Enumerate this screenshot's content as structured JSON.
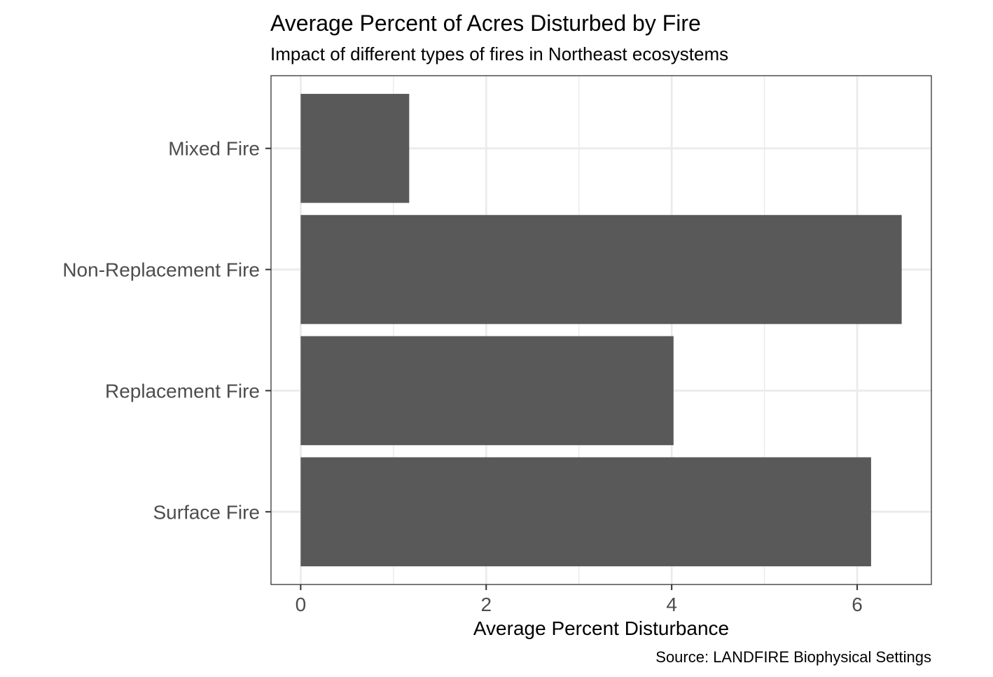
{
  "chart_data": {
    "type": "bar",
    "orientation": "horizontal",
    "title": "Average Percent of Acres Disturbed by Fire",
    "subtitle": "Impact of different types of fires in Northeast ecosystems",
    "caption": "Source: LANDFIRE Biophysical Settings",
    "xlabel": "Average Percent Disturbance",
    "ylabel": "",
    "categories": [
      "Mixed Fire",
      "Non-Replacement Fire",
      "Replacement Fire",
      "Surface Fire"
    ],
    "values": [
      1.17,
      6.48,
      4.02,
      6.15
    ],
    "xlim": [
      -0.32,
      6.8
    ],
    "xticks": [
      0,
      2,
      4,
      6
    ],
    "grid": true,
    "legend": "none",
    "colors": {
      "bar": "#595959",
      "grid": "#ebebeb",
      "panel_border": "#333333"
    }
  }
}
